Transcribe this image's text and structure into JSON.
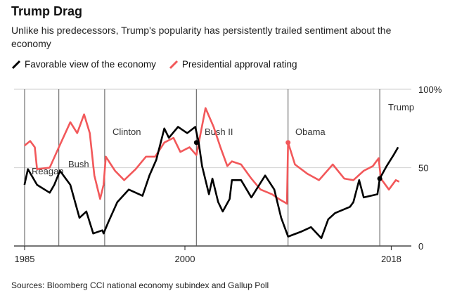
{
  "title": "Trump Drag",
  "subtitle": "Unlike his predecessors, Trump's popularity has persistently trailed sentiment about the economy",
  "source": "Sources: Bloomberg CCI national economy subindex and Gallup Poll",
  "chart_data": {
    "type": "line",
    "title": "Trump Drag",
    "xlabel": "",
    "ylabel": "",
    "xlim": [
      1985,
      2018.7
    ],
    "ylim": [
      0,
      100
    ],
    "x_ticks": [
      {
        "value": 1985,
        "label": "1985"
      },
      {
        "value": 2000,
        "label": "2000"
      },
      {
        "value": 2018,
        "label": "2018"
      }
    ],
    "y_ticks": [
      {
        "value": 0,
        "label": "0"
      },
      {
        "value": 50,
        "label": "50"
      },
      {
        "value": 100,
        "label": "100%"
      }
    ],
    "grid": "horizontal",
    "legend": "top-left",
    "presidents": [
      {
        "name": "Reagan",
        "start": 1986.0
      },
      {
        "name": "Bush I",
        "start": 1989.0
      },
      {
        "name": "Clinton",
        "start": 1993.0
      },
      {
        "name": "Bush II",
        "start": 2001.0
      },
      {
        "name": "Obama",
        "start": 2009.0
      },
      {
        "name": "Trump",
        "start": 2017.0
      }
    ],
    "series": [
      {
        "name": "Favorable view of the economy",
        "color": "#000000",
        "x": [
          1986.0,
          1986.3,
          1987.1,
          1988.2,
          1988.6,
          1989.1,
          1990.0,
          1990.8,
          1991.4,
          1992.0,
          1992.8,
          1992.9,
          1993.3,
          1994.1,
          1995.1,
          1996.3,
          1996.9,
          1997.5,
          1998.2,
          1998.6,
          1999.4,
          2000.2,
          2000.9,
          2001.2,
          2001.5,
          2002.1,
          2002.4,
          2002.9,
          2003.3,
          2003.9,
          2004.1,
          2004.9,
          2005.8,
          2007.0,
          2007.8,
          2008.4,
          2009.0,
          2010.1,
          2011.0,
          2011.9,
          2012.5,
          2013.1,
          2014.4,
          2014.7,
          2015.2,
          2015.6,
          2016.8,
          2017.0,
          2017.6,
          2018.2,
          2018.6
        ],
        "y": [
          39,
          49,
          39,
          34,
          39,
          48,
          39,
          18,
          22,
          8,
          10,
          8,
          15,
          28,
          36,
          32,
          45,
          55,
          75,
          69,
          76,
          72,
          76,
          66,
          51,
          33,
          43,
          28,
          22,
          30,
          42,
          42,
          31,
          45,
          36,
          18,
          6,
          9,
          12,
          5,
          17,
          21,
          25,
          28,
          42,
          31,
          33,
          43,
          51,
          58,
          63
        ]
      },
      {
        "name": "Presidential approval rating",
        "color": "#f2585a",
        "x": [
          1986.0,
          1986.5,
          1986.9,
          1987.1,
          1988.2,
          1989.0,
          1990.0,
          1990.6,
          1991.2,
          1991.7,
          1992.1,
          1992.6,
          1992.9,
          1993.1,
          1993.9,
          1994.7,
          1995.7,
          1996.6,
          1997.4,
          1998.2,
          1999.0,
          1999.6,
          2000.4,
          2001.0,
          2001.8,
          2002.5,
          2003.1,
          2003.7,
          2004.1,
          2004.9,
          2005.8,
          2006.6,
          2007.6,
          2008.2,
          2008.9,
          2009.0,
          2009.6,
          2010.7,
          2011.7,
          2012.9,
          2013.9,
          2014.7,
          2015.6,
          2016.4,
          2016.9,
          2017.1,
          2017.8,
          2018.4,
          2018.7
        ],
        "y": [
          64,
          67,
          63,
          49,
          50,
          63,
          79,
          72,
          84,
          72,
          45,
          30,
          39,
          57,
          48,
          42,
          49,
          57,
          57,
          66,
          69,
          60,
          63,
          58,
          88,
          76,
          63,
          51,
          54,
          52,
          43,
          36,
          33,
          30,
          27,
          66,
          52,
          46,
          42,
          52,
          43,
          42,
          48,
          51,
          56,
          43,
          36,
          42,
          41
        ]
      }
    ],
    "markers": [
      {
        "series": "Favorable view of the economy",
        "x": 2001.0,
        "y": 66
      },
      {
        "series": "Presidential approval rating",
        "x": 2009.0,
        "y": 66
      },
      {
        "series": "Favorable view of the economy",
        "x": 2017.0,
        "y": 43
      }
    ]
  }
}
